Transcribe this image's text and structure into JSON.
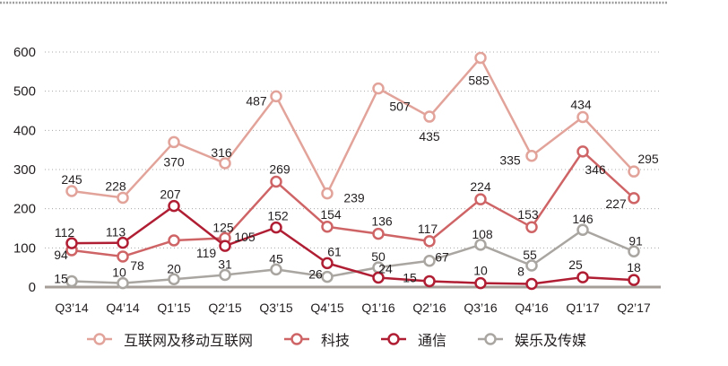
{
  "chart_data": {
    "type": "line",
    "title": "",
    "xlabel": "",
    "ylabel": "",
    "ylim": [
      0,
      600
    ],
    "yticks": [
      0,
      100,
      200,
      300,
      400,
      500,
      600
    ],
    "grid": true,
    "legend_position": "bottom",
    "categories": [
      "Q3'14",
      "Q4'14",
      "Q1'15",
      "Q2'15",
      "Q3'15",
      "Q4'15",
      "Q1'16",
      "Q2'16",
      "Q3'16",
      "Q4'16",
      "Q1'17",
      "Q2'17"
    ],
    "series": [
      {
        "name": "互联网及移动互联网",
        "color": "#e2a39a",
        "values": [
          245,
          228,
          370,
          316,
          487,
          239,
          507,
          435,
          585,
          335,
          434,
          295
        ]
      },
      {
        "name": "科技",
        "color": "#cf6466",
        "values": [
          94,
          78,
          119,
          125,
          269,
          154,
          136,
          117,
          224,
          153,
          346,
          227
        ]
      },
      {
        "name": "通信",
        "color": "#b01e34",
        "values": [
          112,
          113,
          207,
          105,
          152,
          61,
          24,
          15,
          10,
          8,
          25,
          18
        ]
      },
      {
        "name": "娱乐及传媒",
        "color": "#a9a5a1",
        "values": [
          15,
          10,
          20,
          31,
          45,
          26,
          50,
          67,
          108,
          55,
          146,
          91
        ]
      }
    ]
  },
  "legend": {
    "items": [
      {
        "label": "互联网及移动互联网",
        "color": "#e2a39a"
      },
      {
        "label": "科技",
        "color": "#cf6466"
      },
      {
        "label": "通信",
        "color": "#b01e34"
      },
      {
        "label": "娱乐及传媒",
        "color": "#a9a5a1"
      }
    ]
  },
  "colors": {
    "gridline": "#a8a8a8",
    "baseline": "#a49d98",
    "top_border": "#9c9c9c"
  }
}
